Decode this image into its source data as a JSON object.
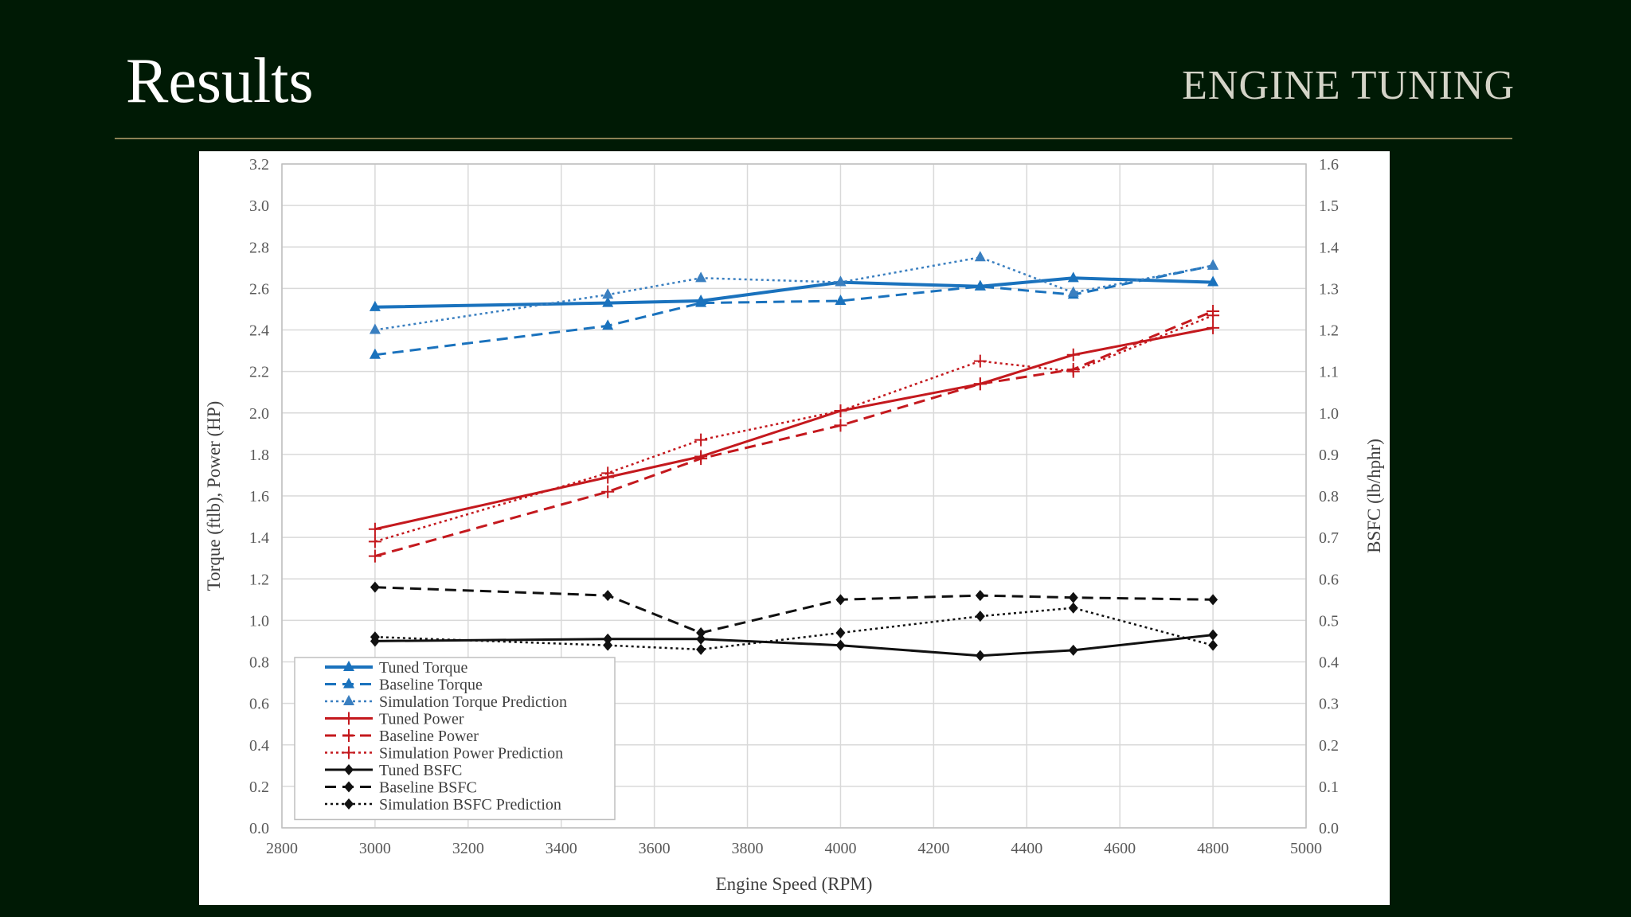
{
  "slide": {
    "title": "Results",
    "subtitle": "ENGINE TUNING"
  },
  "colors": {
    "background": "#001a05",
    "torque": "#1a72bd",
    "power": "#c4191e",
    "bsfc": "#111111"
  },
  "chart_data": {
    "type": "line",
    "title": "",
    "xlabel": "Engine Speed (RPM)",
    "ylabel": "Torque (ftlb), Power (HP)",
    "y2label": "BSFC (lb/hphr)",
    "xlim": [
      2800,
      5000
    ],
    "ylim": [
      0,
      3.2
    ],
    "y2lim": [
      0,
      1.6
    ],
    "xticks": [
      "2800",
      "3000",
      "3200",
      "3400",
      "3600",
      "3800",
      "4000",
      "4200",
      "4400",
      "4600",
      "4800",
      "5000"
    ],
    "yticks": [
      "0.0",
      "0.2",
      "0.4",
      "0.6",
      "0.8",
      "1.0",
      "1.2",
      "1.4",
      "1.6",
      "1.8",
      "2.0",
      "2.2",
      "2.4",
      "2.6",
      "2.8",
      "3.0",
      "3.2"
    ],
    "y2ticks": [
      "0.0",
      "0.1",
      "0.2",
      "0.3",
      "0.4",
      "0.5",
      "0.6",
      "0.7",
      "0.8",
      "0.9",
      "1.0",
      "1.1",
      "1.2",
      "1.3",
      "1.4",
      "1.5",
      "1.6"
    ],
    "grid": true,
    "legend_position": "bottom-left",
    "series": [
      {
        "name": "Tuned Torque",
        "axis": "left",
        "color": "#1a72bd",
        "style": "solid",
        "width": 4,
        "marker": "triangle",
        "x": [
          3000,
          3500,
          3700,
          4000,
          4300,
          4500,
          4800
        ],
        "y": [
          2.51,
          2.53,
          2.54,
          2.63,
          2.61,
          2.65,
          2.63
        ]
      },
      {
        "name": "Baseline Torque",
        "axis": "left",
        "color": "#1a72bd",
        "style": "dashed",
        "width": 3,
        "marker": "triangle",
        "x": [
          3000,
          3500,
          3700,
          4000,
          4300,
          4500,
          4800
        ],
        "y": [
          2.28,
          2.42,
          2.53,
          2.54,
          2.61,
          2.57,
          2.71
        ]
      },
      {
        "name": "Simulation Torque Prediction",
        "axis": "left",
        "color": "#3a7fc0",
        "style": "dotted",
        "width": 2.5,
        "marker": "triangle",
        "x": [
          3000,
          3500,
          3700,
          4000,
          4300,
          4500,
          4800
        ],
        "y": [
          2.4,
          2.57,
          2.65,
          2.63,
          2.75,
          2.58,
          2.71
        ]
      },
      {
        "name": "Tuned Power",
        "axis": "left",
        "color": "#c4191e",
        "style": "solid",
        "width": 3,
        "marker": "plus",
        "x": [
          3000,
          3500,
          3700,
          4000,
          4300,
          4500,
          4800
        ],
        "y": [
          1.44,
          1.69,
          1.79,
          2.01,
          2.14,
          2.28,
          2.41
        ]
      },
      {
        "name": "Baseline Power",
        "axis": "left",
        "color": "#c4191e",
        "style": "dashed",
        "width": 3,
        "marker": "plus",
        "x": [
          3000,
          3500,
          3700,
          4000,
          4300,
          4500,
          4800
        ],
        "y": [
          1.31,
          1.62,
          1.78,
          1.94,
          2.14,
          2.21,
          2.49
        ]
      },
      {
        "name": "Simulation Power Prediction",
        "axis": "left",
        "color": "#c4191e",
        "style": "dotted",
        "width": 2.5,
        "marker": "plus",
        "x": [
          3000,
          3500,
          3700,
          4000,
          4300,
          4500,
          4800
        ],
        "y": [
          1.38,
          1.71,
          1.87,
          2.01,
          2.25,
          2.2,
          2.47
        ]
      },
      {
        "name": "Tuned BSFC",
        "axis": "right",
        "color": "#111111",
        "style": "solid",
        "width": 3,
        "marker": "diamond",
        "x": [
          3000,
          3500,
          3700,
          4000,
          4300,
          4500,
          4800
        ],
        "y": [
          0.45,
          0.455,
          0.455,
          0.44,
          0.415,
          0.428,
          0.465
        ]
      },
      {
        "name": "Baseline BSFC",
        "axis": "right",
        "color": "#111111",
        "style": "dashed",
        "width": 3,
        "marker": "diamond",
        "x": [
          3000,
          3500,
          3700,
          4000,
          4300,
          4500,
          4800
        ],
        "y": [
          0.58,
          0.56,
          0.47,
          0.55,
          0.56,
          0.555,
          0.55
        ]
      },
      {
        "name": "Simulation BSFC Prediction",
        "axis": "right",
        "color": "#111111",
        "style": "dotted",
        "width": 2.5,
        "marker": "diamond",
        "x": [
          3000,
          3500,
          3700,
          4000,
          4300,
          4500,
          4800
        ],
        "y": [
          0.46,
          0.44,
          0.43,
          0.47,
          0.51,
          0.53,
          0.44
        ]
      }
    ]
  }
}
